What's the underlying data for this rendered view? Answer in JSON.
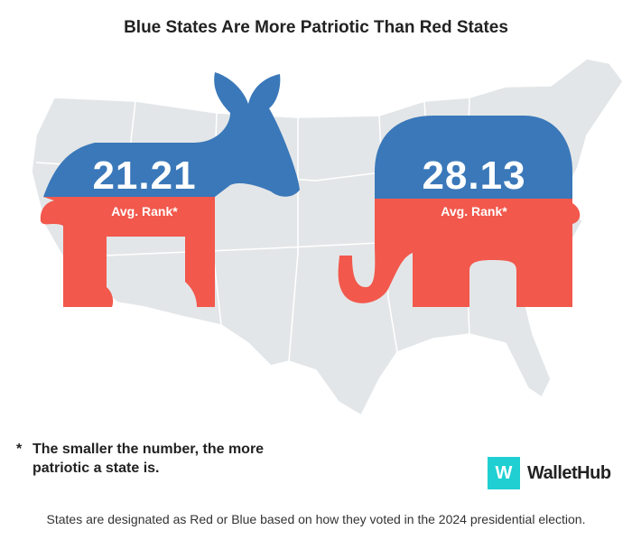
{
  "title": "Blue States Are More Patriotic Than Red States",
  "blue": {
    "value": "21.21",
    "label": "Avg. Rank*",
    "color": "#3a78b9",
    "icon": "donkey-icon"
  },
  "red": {
    "value": "28.13",
    "label": "Avg. Rank*",
    "color": "#f2584c",
    "icon": "elephant-icon"
  },
  "map_color": "#e3e6e8",
  "note": {
    "marker": "*",
    "text": "The smaller the number, the more patriotic a state is."
  },
  "logo": {
    "letter": "W",
    "name": "WalletHub",
    "color": "#1fcfd2"
  },
  "footer": "States are designated as Red or Blue based on how they voted in the 2024 presidential election."
}
